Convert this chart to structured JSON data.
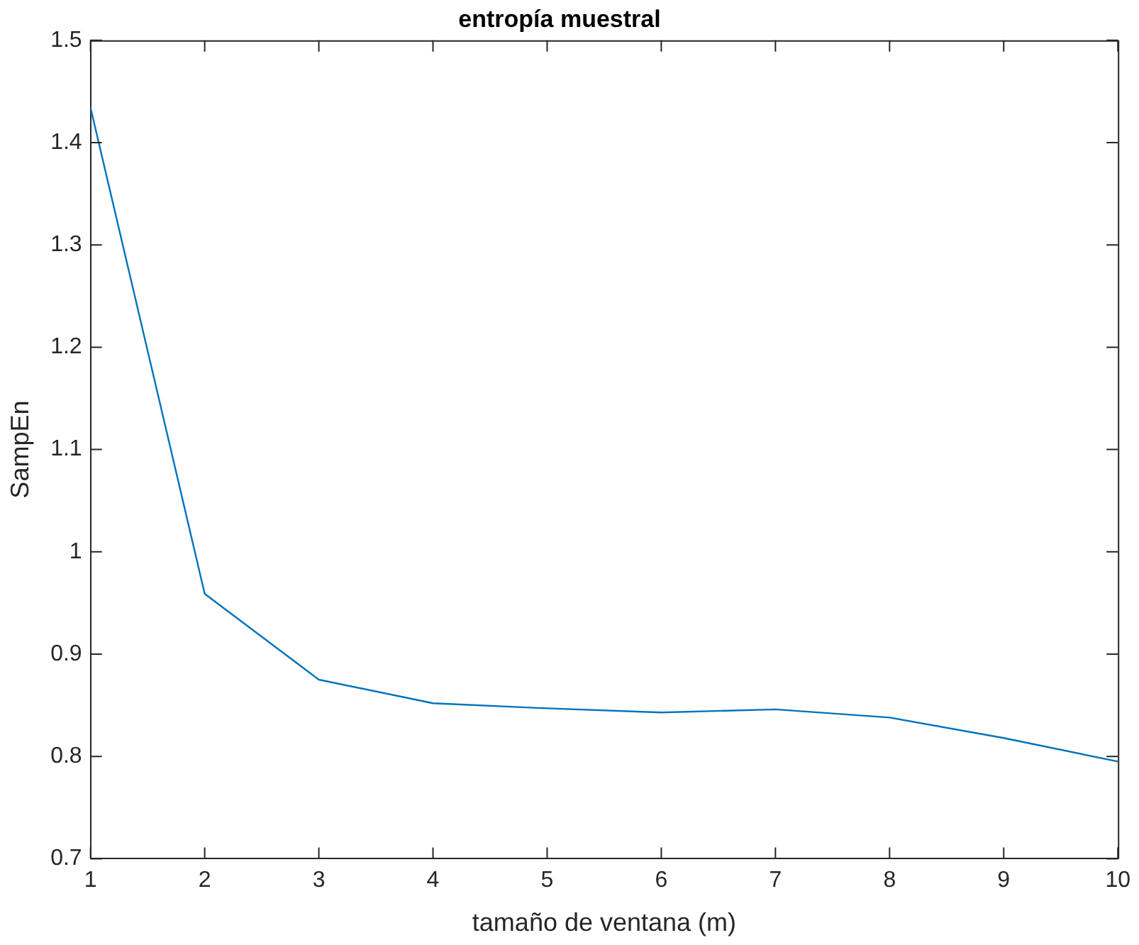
{
  "chart_data": {
    "type": "line",
    "title": "entropía muestral",
    "xlabel": "tamaño de ventana (m)",
    "ylabel": "SampEn",
    "x": [
      1,
      2,
      3,
      4,
      5,
      6,
      7,
      8,
      9,
      10
    ],
    "series": [
      {
        "color": "#0072bd",
        "values": [
          1.434,
          0.959,
          0.875,
          0.852,
          0.847,
          0.843,
          0.846,
          0.838,
          0.818,
          0.795
        ]
      }
    ],
    "xlim": [
      1,
      10
    ],
    "xticks": [
      1,
      2,
      3,
      4,
      5,
      6,
      7,
      8,
      9,
      10
    ],
    "ylim": [
      0.7,
      1.5
    ],
    "yticks": [
      0.7,
      0.8,
      0.9,
      1,
      1.1,
      1.2,
      1.3,
      1.4,
      1.5
    ],
    "grid": false,
    "legend": false,
    "marker": "none",
    "line_style": "solid"
  }
}
